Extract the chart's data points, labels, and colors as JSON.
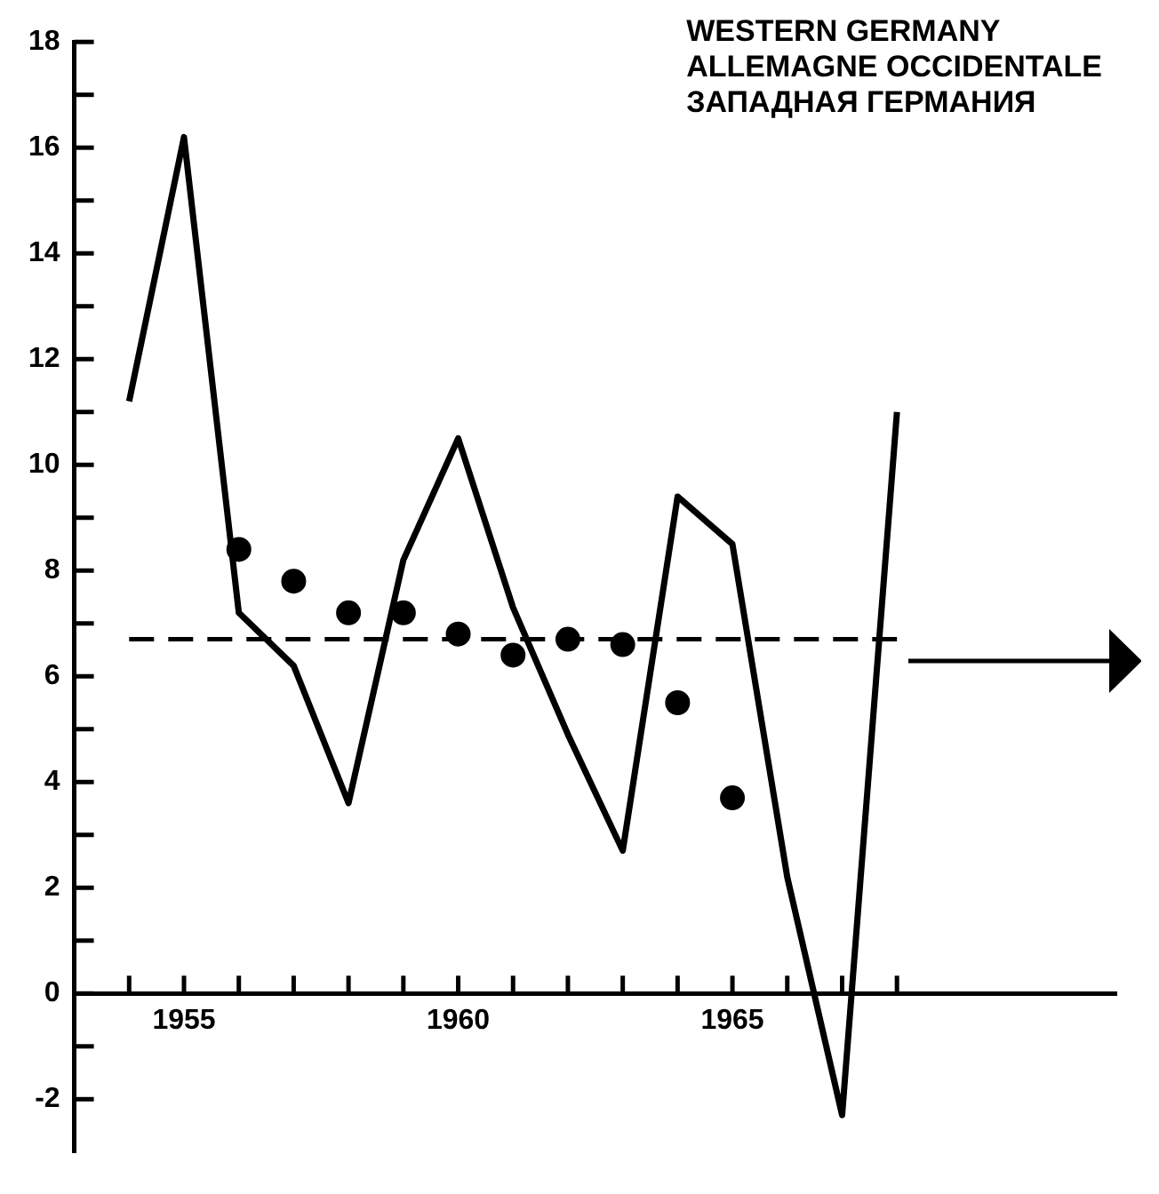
{
  "chart_data": {
    "type": "line",
    "title": "WESTERN GERMANY\nALLEMAGNE OCCIDENTALE\nЗАПАДНАЯ ГЕРМАНИЯ",
    "series": [
      {
        "color": "#000000",
        "marker": "none",
        "line_style": "solid",
        "x": [
          1954,
          1955,
          1956,
          1957,
          1958,
          1959,
          1960,
          1961,
          1962,
          1963,
          1964,
          1965,
          1966,
          1967,
          1968
        ],
        "values": [
          11.2,
          16.2,
          7.2,
          6.2,
          3.6,
          8.2,
          10.5,
          7.3,
          4.9,
          2.7,
          9.4,
          8.5,
          2.2,
          -2.3,
          11
        ]
      },
      {
        "type": "scatter",
        "color": "#000000",
        "marker": "circle",
        "x": [
          1956,
          1957,
          1958,
          1959,
          1960,
          1961,
          1962,
          1963,
          1964,
          1965
        ],
        "values": [
          8.4,
          7.8,
          7.2,
          7.2,
          6.8,
          6.4,
          6.7,
          6.6,
          5.5,
          3.7
        ]
      }
    ],
    "ref_lines": [
      {
        "axis": "y",
        "value": 6.7,
        "color": "#000000",
        "line_style": "dashed"
      }
    ],
    "xlim": [
      1953,
      1972
    ],
    "xticks": [
      {
        "value": 1954,
        "label": null
      },
      1955,
      {
        "value": 1956,
        "label": null
      },
      {
        "value": 1957,
        "label": null
      },
      {
        "value": 1958,
        "label": null
      },
      {
        "value": 1959,
        "label": null
      },
      1960,
      {
        "value": 1961,
        "label": null
      },
      {
        "value": 1962,
        "label": null
      },
      {
        "value": 1963,
        "label": null
      },
      {
        "value": 1964,
        "label": null
      },
      1965,
      {
        "value": 1966,
        "label": null
      },
      {
        "value": 1967,
        "label": null
      },
      {
        "value": 1968,
        "label": null
      }
    ],
    "ylim": [
      -3,
      18
    ],
    "yticks": [
      -2,
      {
        "value": -1,
        "label": null
      },
      0,
      {
        "value": 1,
        "label": null
      },
      2,
      {
        "value": 3,
        "label": null
      },
      4,
      {
        "value": 5,
        "label": null
      },
      6,
      {
        "value": 7,
        "label": null
      },
      8,
      {
        "value": 9,
        "label": null
      },
      10,
      {
        "value": 11,
        "label": null
      },
      12,
      {
        "value": 13,
        "label": null
      },
      14,
      {
        "value": 15,
        "label": null
      },
      16,
      {
        "value": 17,
        "label": null
      },
      18
    ],
    "grid": false,
    "legend": false
  }
}
